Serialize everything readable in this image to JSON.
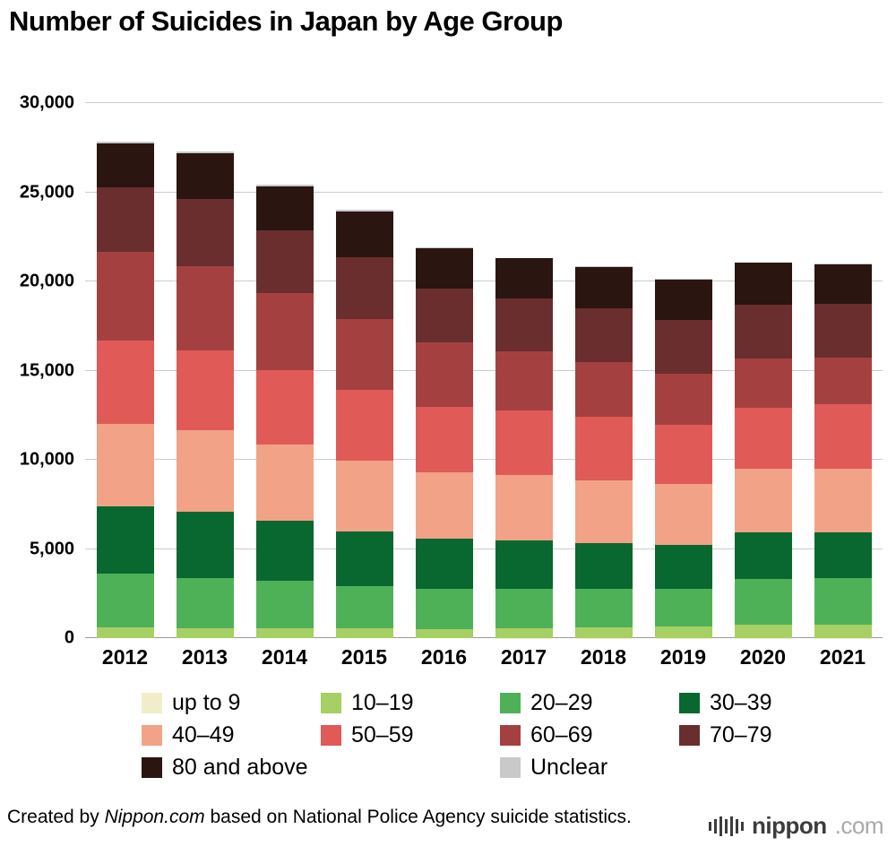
{
  "page": {
    "title": "Number of Suicides in Japan by Age Group"
  },
  "chart_data": {
    "type": "bar",
    "stacked": true,
    "title": "Number of Suicides in Japan by Age Group",
    "xlabel": "",
    "ylabel": "",
    "grid": true,
    "legend_position": "bottom",
    "ylim": [
      0,
      30000
    ],
    "yticks": [
      {
        "value": 0,
        "label": "0"
      },
      {
        "value": 5000,
        "label": "5,000"
      },
      {
        "value": 10000,
        "label": "10,000"
      },
      {
        "value": 15000,
        "label": "15,000"
      },
      {
        "value": 20000,
        "label": "20,000"
      },
      {
        "value": 25000,
        "label": "25,000"
      },
      {
        "value": 30000,
        "label": "30,000"
      }
    ],
    "categories": [
      "2012",
      "2013",
      "2014",
      "2015",
      "2016",
      "2017",
      "2018",
      "2019",
      "2020",
      "2021"
    ],
    "series": [
      {
        "name": "up to 9",
        "color": "#f1edca",
        "values": [
          3,
          2,
          3,
          2,
          2,
          6,
          7,
          8,
          14,
          11
        ]
      },
      {
        "name": "10–19",
        "color": "#a6d063",
        "values": [
          596,
          563,
          535,
          552,
          518,
          561,
          592,
          651,
          763,
          739
        ]
      },
      {
        "name": "20–29",
        "color": "#4fb157",
        "values": [
          3000,
          2801,
          2684,
          2352,
          2235,
          2213,
          2152,
          2117,
          2521,
          2611
        ]
      },
      {
        "name": "30–39",
        "color": "#09682f",
        "values": [
          3781,
          3705,
          3387,
          3087,
          2824,
          2703,
          2586,
          2437,
          2610,
          2554
        ]
      },
      {
        "name": "40–49",
        "color": "#f2a287",
        "values": [
          4616,
          4589,
          4234,
          3979,
          3739,
          3668,
          3498,
          3426,
          3568,
          3575
        ]
      },
      {
        "name": "50–59",
        "color": "#e05a58",
        "values": [
          4668,
          4484,
          4181,
          3953,
          3631,
          3593,
          3575,
          3307,
          3425,
          3618
        ]
      },
      {
        "name": "60–69",
        "color": "#a44140",
        "values": [
          4976,
          4716,
          4325,
          3973,
          3626,
          3339,
          3079,
          2902,
          2795,
          2637
        ]
      },
      {
        "name": "70–79",
        "color": "#6a2e2e",
        "values": [
          3661,
          3785,
          3508,
          3451,
          3041,
          2963,
          3018,
          3006,
          3026,
          2982
        ]
      },
      {
        "name": "80 and above",
        "color": "#2a1510",
        "values": [
          2459,
          2550,
          2480,
          2588,
          2262,
          2256,
          2284,
          2254,
          2325,
          2214
        ]
      },
      {
        "name": "Unclear",
        "color": "#c9c9c9",
        "values": [
          98,
          88,
          90,
          88,
          19,
          19,
          49,
          61,
          34,
          66
        ]
      }
    ],
    "totals": [
      27858,
      27283,
      25427,
      24025,
      21897,
      21321,
      20840,
      20169,
      21081,
      21007
    ]
  },
  "footer": {
    "prefix": "Created by ",
    "source_name": "Nippon.com",
    "suffix": " based on National Police Agency suicide statistics."
  },
  "logo": {
    "name": "nippon",
    "tld": ".com"
  }
}
